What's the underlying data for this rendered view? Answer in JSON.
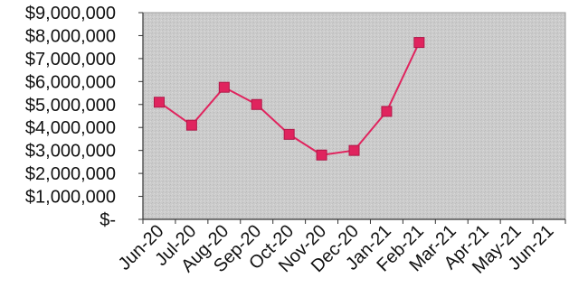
{
  "chart_data": {
    "type": "line",
    "title": "",
    "xlabel": "",
    "ylabel": "",
    "categories": [
      "Jun-20",
      "Jul-20",
      "Aug-20",
      "Sep-20",
      "Oct-20",
      "Nov-20",
      "Dec-20",
      "Jan-21",
      "Feb-21",
      "Mar-21",
      "Apr-21",
      "May-21",
      "Jun-21"
    ],
    "y_ticks": [
      9000000,
      8000000,
      7000000,
      6000000,
      5000000,
      4000000,
      3000000,
      2000000,
      1000000,
      0
    ],
    "y_tick_labels": [
      "$9,000,000",
      "$8,000,000",
      "$7,000,000",
      "$6,000,000",
      "$5,000,000",
      "$4,000,000",
      "$3,000,000",
      "$2,000,000",
      "$1,000,000",
      "$-"
    ],
    "ylim": [
      0,
      9000000
    ],
    "series": [
      {
        "values": [
          5100000,
          4100000,
          5750000,
          5000000,
          3700000,
          2800000,
          3000000,
          4700000,
          7700000,
          null,
          null,
          null,
          null
        ]
      }
    ],
    "grid": false,
    "legend": "none",
    "colors": {
      "line": "#e0245e",
      "marker": "#e0245e",
      "plot_background": "#c8c8c8",
      "axis": "#333333"
    }
  }
}
